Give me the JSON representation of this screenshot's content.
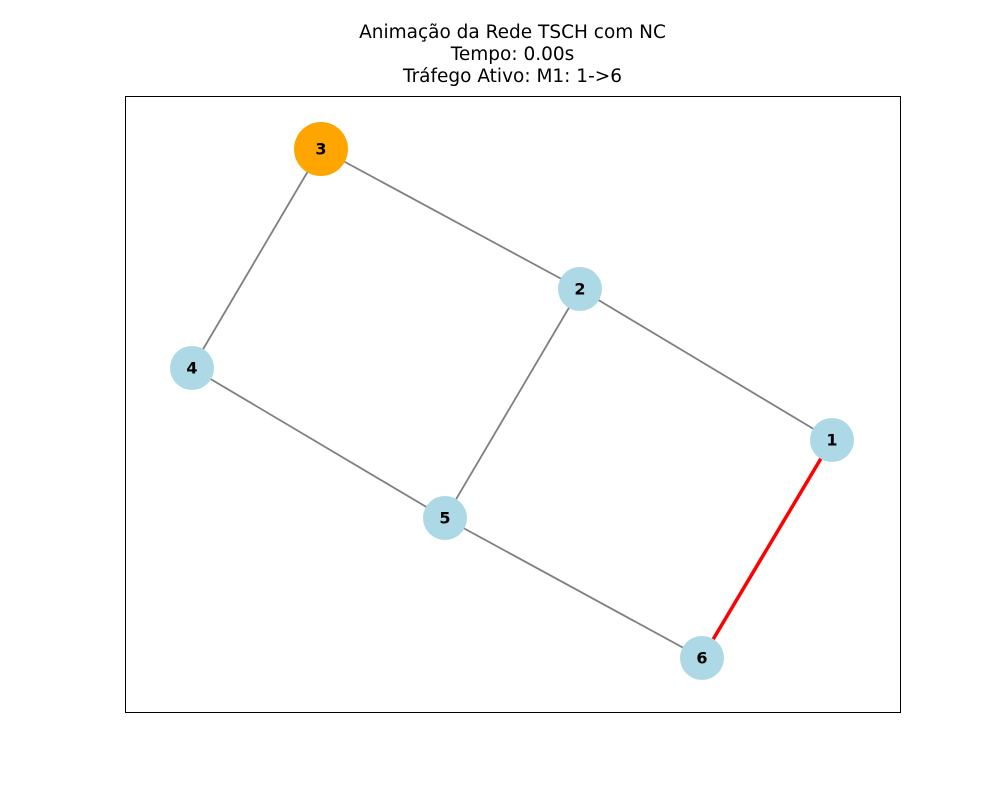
{
  "figure": {
    "title_lines": [
      "Animação da Rede TSCH com NC",
      "Tempo: 0.00s",
      "Tráfego Ativo: M1: 1->6"
    ]
  },
  "colors": {
    "node_default": "#add8e6",
    "node_highlight": "#ffa500",
    "edge": "#808080",
    "arrow": "#ff0000",
    "frame": "#000000"
  },
  "graph": {
    "nodes": [
      {
        "id": "1",
        "label": "1",
        "state": "default"
      },
      {
        "id": "2",
        "label": "2",
        "state": "default"
      },
      {
        "id": "3",
        "label": "3",
        "state": "highlight"
      },
      {
        "id": "4",
        "label": "4",
        "state": "default"
      },
      {
        "id": "5",
        "label": "5",
        "state": "default"
      },
      {
        "id": "6",
        "label": "6",
        "state": "default"
      }
    ],
    "edges": [
      {
        "source": "3",
        "target": "4"
      },
      {
        "source": "3",
        "target": "2"
      },
      {
        "source": "2",
        "target": "1"
      },
      {
        "source": "2",
        "target": "5"
      },
      {
        "source": "4",
        "target": "5"
      },
      {
        "source": "5",
        "target": "6"
      }
    ],
    "active_traffic": [
      {
        "name": "M1",
        "source": "1",
        "target": "6"
      }
    ]
  }
}
